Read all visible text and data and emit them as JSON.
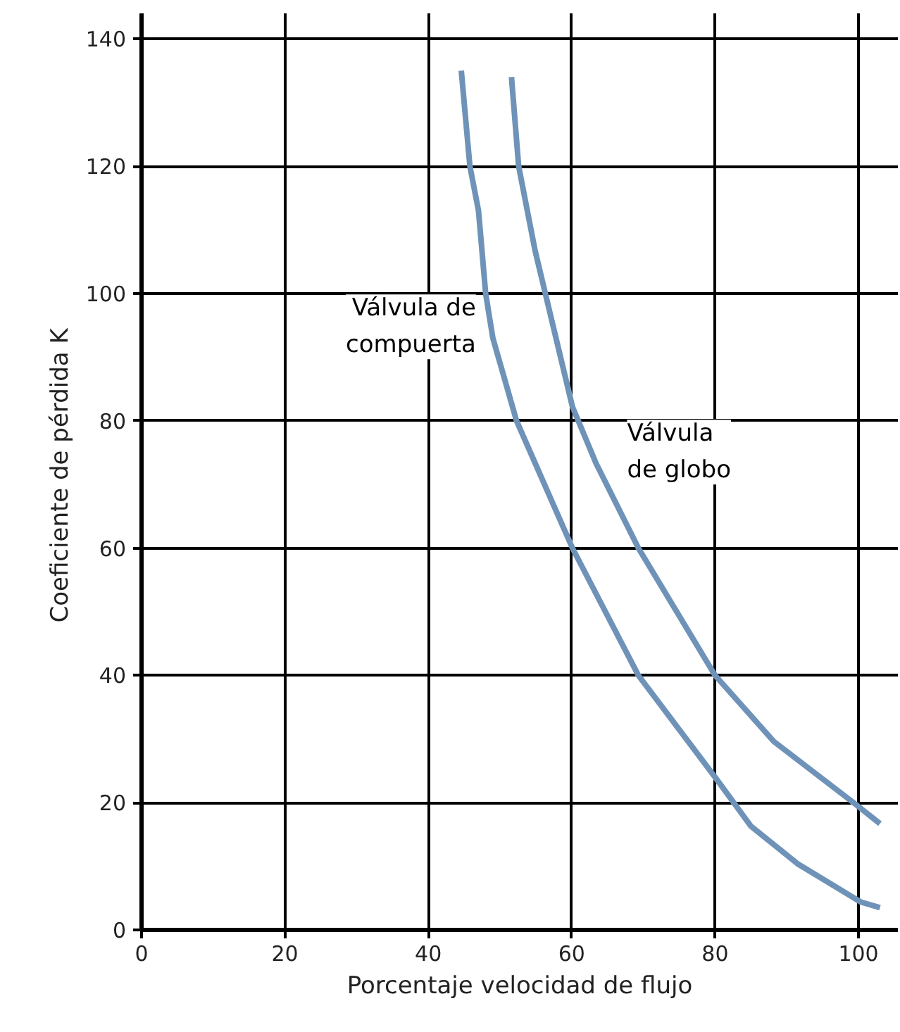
{
  "chart_data": {
    "type": "line",
    "xlabel": "Porcentaje velocidad de flujo",
    "ylabel": "Coeficiente de pérdida  K",
    "xlim": [
      0,
      105.5
    ],
    "ylim": [
      0,
      144
    ],
    "xticks": [
      0,
      20,
      40,
      60,
      80,
      100
    ],
    "yticks": [
      0,
      20,
      40,
      60,
      80,
      100,
      120,
      140
    ],
    "grid": true,
    "marker": "none",
    "line_style": "solid",
    "series": [
      {
        "name": "Válvula de\ncompuerta",
        "color": "#6f93b8",
        "x": [
          44.6,
          45.8,
          47,
          48,
          49,
          52.3,
          60.1,
          69.3,
          80,
          85,
          91.5,
          100.3,
          103
        ],
        "values": [
          135,
          120,
          113,
          100,
          93,
          80,
          60,
          40,
          24,
          16.3,
          10.4,
          4.4,
          3.5
        ]
      },
      {
        "name": "Válvula\nde globo",
        "color": "#6f93b8",
        "x": [
          51.6,
          52.6,
          54.9,
          60.1,
          63.4,
          69.3,
          80,
          88.2,
          99.3,
          103
        ],
        "values": [
          134,
          120,
          106.7,
          82.2,
          73.3,
          60,
          40,
          29.6,
          20,
          16.7
        ]
      }
    ]
  }
}
